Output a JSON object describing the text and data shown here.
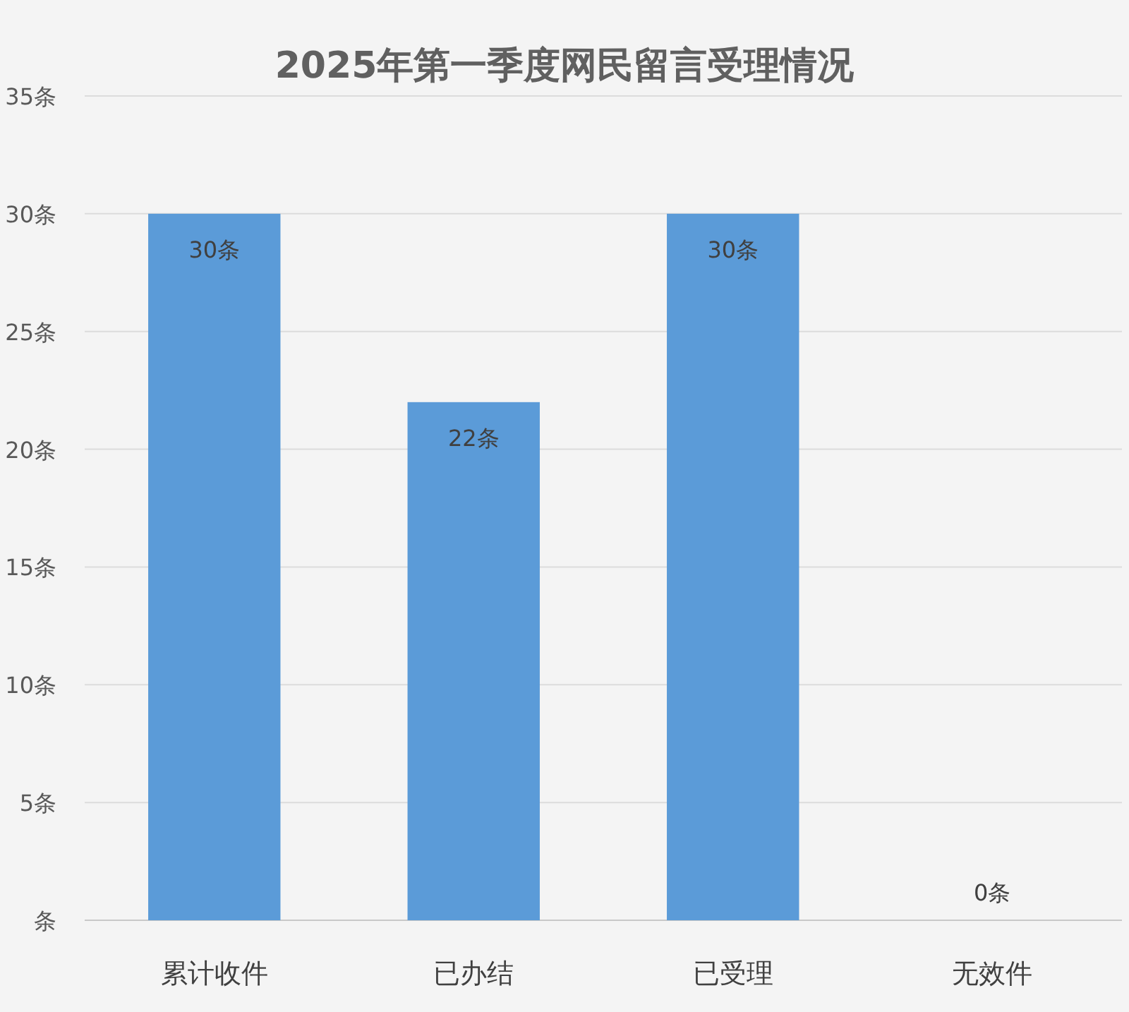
{
  "chart_data": {
    "type": "bar",
    "title": "2025年第一季度网民留言受理情况",
    "categories": [
      "累计收件",
      "已办结",
      "已受理",
      "无效件"
    ],
    "values": [
      30,
      22,
      30,
      0
    ],
    "value_labels": [
      "30条",
      "22条",
      "30条",
      "0条"
    ],
    "color": "#5b9bd8",
    "ylim": [
      0,
      35
    ],
    "yticks": [
      {
        "value": 0,
        "label": "条"
      },
      {
        "value": 5,
        "label": "5条"
      },
      {
        "value": 10,
        "label": "10条"
      },
      {
        "value": 15,
        "label": "15条"
      },
      {
        "value": 20,
        "label": "20条"
      },
      {
        "value": 25,
        "label": "25条"
      },
      {
        "value": 30,
        "label": "30条"
      },
      {
        "value": 35,
        "label": "35条"
      }
    ],
    "grid": "y"
  }
}
